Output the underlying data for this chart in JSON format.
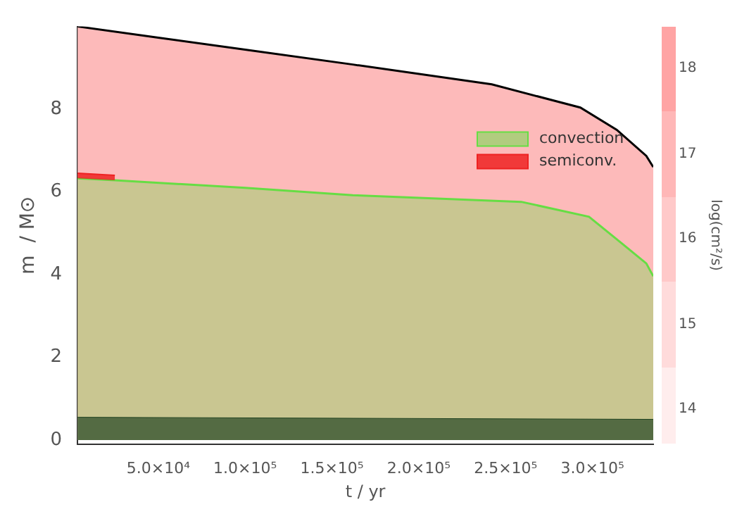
{
  "chart_data": {
    "type": "area",
    "xlabel": "t / yr",
    "ylabel": "m  / M⊙",
    "clabel": "log(cm²/s)",
    "clim": [
      13.6,
      18.5
    ],
    "cticks": [
      14,
      15,
      16,
      17,
      18
    ],
    "xlim": [
      3500,
      335000
    ],
    "ylim": [
      -0.1,
      10
    ],
    "xticks": [
      {
        "value": 50000,
        "label": "5.0×10⁴"
      },
      {
        "value": 100000,
        "label": "1.0×10⁵"
      },
      {
        "value": 150000,
        "label": "1.5×10⁵"
      },
      {
        "value": 200000,
        "label": "2.0×10⁵"
      },
      {
        "value": 250000,
        "label": "2.5×10⁵"
      },
      {
        "value": 300000,
        "label": "3.0×10⁵"
      }
    ],
    "yticks": [
      0,
      2,
      4,
      6,
      8
    ],
    "grid": false,
    "legend": "top right",
    "series": [
      {
        "color": "#fdbaba",
        "x": [
          3500,
          50000,
          100000,
          162000,
          242000,
          293000,
          314000,
          331000,
          335000
        ],
        "values": [
          10.0,
          9.73,
          9.44,
          9.08,
          8.6,
          8.04,
          7.5,
          6.87,
          6.6
        ]
      },
      {
        "name": "convection",
        "color": "#66dd44",
        "x": [
          3500,
          25000,
          100000,
          162000,
          259000,
          298000,
          317000,
          331000,
          335000
        ],
        "values": [
          6.33,
          6.28,
          6.1,
          5.92,
          5.76,
          5.4,
          4.75,
          4.27,
          3.96
        ]
      },
      {
        "name": "semiconv.",
        "color": "#ee2222",
        "x": [
          3500,
          25000
        ],
        "values": [
          6.45,
          6.4
        ]
      },
      {
        "color": "#224422",
        "x": [
          3500,
          335000
        ],
        "values": [
          0.55,
          0.5
        ]
      }
    ]
  }
}
